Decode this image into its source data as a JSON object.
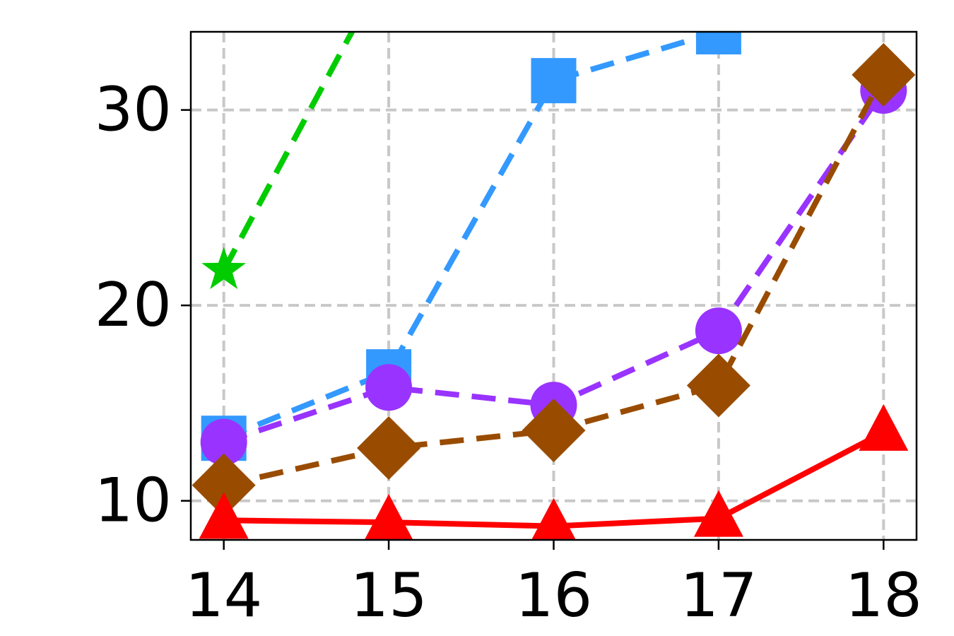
{
  "chart_data": {
    "type": "line",
    "title": "",
    "xlabel": "",
    "ylabel": "",
    "x": [
      14,
      15,
      16,
      17,
      18
    ],
    "xlim": [
      13.8,
      18.2
    ],
    "ylim": [
      8.0,
      34.0
    ],
    "xticks": [
      14,
      15,
      16,
      17,
      18
    ],
    "yticks": [
      10,
      20,
      30
    ],
    "grid": true,
    "series": [
      {
        "color": "#00cc00",
        "linestyle": "dashed",
        "marker": "star",
        "values": [
          21.8,
          37.5,
          null,
          null,
          null
        ]
      },
      {
        "color": "#3399ff",
        "linestyle": "dashed",
        "marker": "square",
        "values": [
          13.2,
          16.6,
          31.5,
          34.0,
          null
        ]
      },
      {
        "color": "#9933ff",
        "linestyle": "dashed",
        "marker": "circle",
        "values": [
          13.0,
          15.8,
          14.9,
          18.7,
          31.0
        ]
      },
      {
        "color": "#994c00",
        "linestyle": "dashed",
        "marker": "diamond",
        "values": [
          10.8,
          12.7,
          13.6,
          15.9,
          31.8
        ]
      },
      {
        "color": "#ff0000",
        "linestyle": "solid",
        "marker": "triangle",
        "values": [
          9.0,
          8.9,
          8.7,
          9.1,
          13.5
        ]
      }
    ]
  }
}
